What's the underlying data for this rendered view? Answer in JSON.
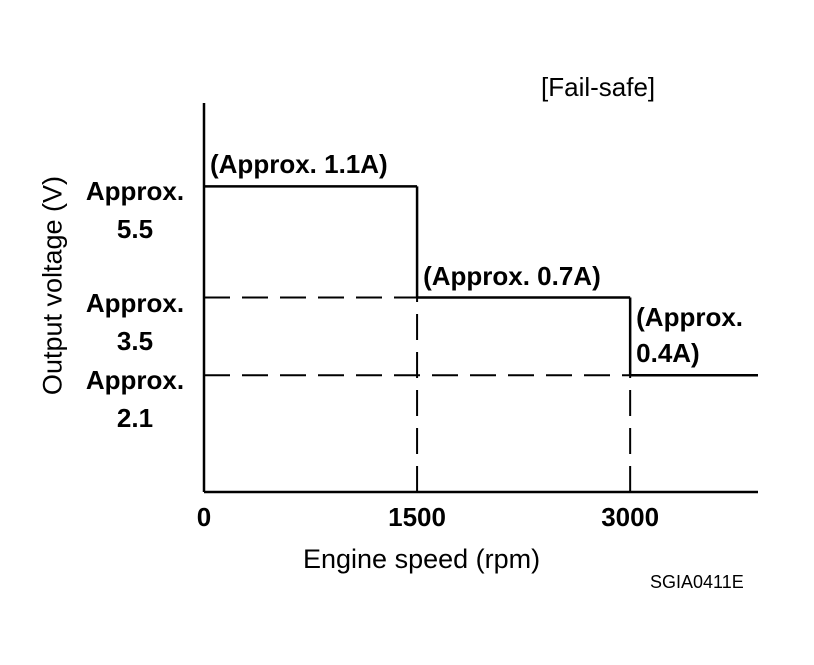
{
  "chart_data": {
    "type": "step",
    "title": "[Fail-safe]",
    "x_label": "Engine speed (rpm)",
    "y_label": "Output voltage (V)",
    "x": [
      0,
      1500,
      3000
    ],
    "values": [
      5.5,
      3.5,
      2.1
    ],
    "annotations": [
      "(Approx. 1.1A)",
      "(Approx. 0.7A)",
      "(Approx. 0.4A)"
    ],
    "color": "#000000",
    "xlim": [
      0,
      3900
    ],
    "xticks": [
      0,
      1500,
      3000
    ],
    "ylim": [
      0,
      7
    ],
    "yticks": [
      {
        "value": 5.5,
        "label": "Approx. 5.5"
      },
      {
        "value": 3.5,
        "label": "Approx. 3.5"
      },
      {
        "value": 2.1,
        "label": "Approx. 2.1"
      }
    ],
    "grid": true,
    "code": "SGIA0411E"
  }
}
